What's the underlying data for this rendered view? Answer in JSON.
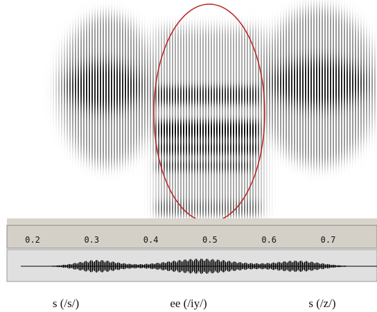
{
  "time_axis": {
    "ticks": [
      "0.2",
      "0.3",
      "0.4",
      "0.5",
      "0.6",
      "0.7"
    ]
  },
  "segments": [
    "s (/s/)",
    "ee (/iy/)",
    "s (/z/)"
  ]
}
